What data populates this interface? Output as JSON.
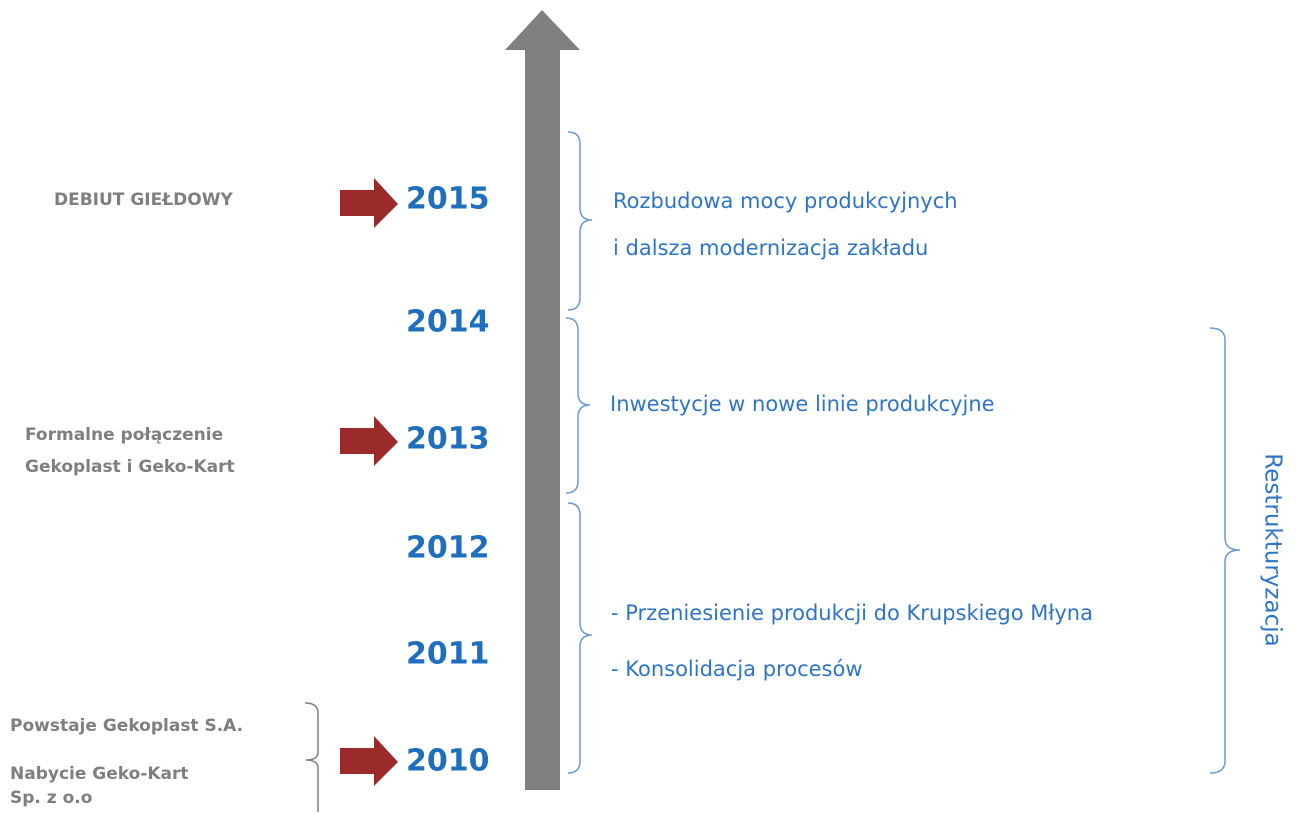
{
  "years": [
    "2015",
    "2014",
    "2013",
    "2012",
    "2011",
    "2010"
  ],
  "events": [
    {
      "lines": [
        "DEBIUT GIEŁDOWY"
      ]
    },
    {
      "lines": [
        "Formalne połączenie",
        "Gekoplast i Geko-Kart"
      ]
    },
    {
      "lines": [
        "Powstaje Gekoplast S.A.",
        "Nabycie Geko-Kart",
        "Sp. z o.o"
      ]
    }
  ],
  "phases": [
    {
      "lines": [
        "Rozbudowa mocy produkcyjnych",
        "i dalsza modernizacja zakładu"
      ]
    },
    {
      "lines": [
        "Inwestycje w nowe linie produkcyjne"
      ]
    },
    {
      "lines": [
        "- Przeniesienie produkcji do Krupskiego Młyna",
        "- Konsolidacja procesów"
      ]
    }
  ],
  "overall_phase": "Restrukturyzacja"
}
